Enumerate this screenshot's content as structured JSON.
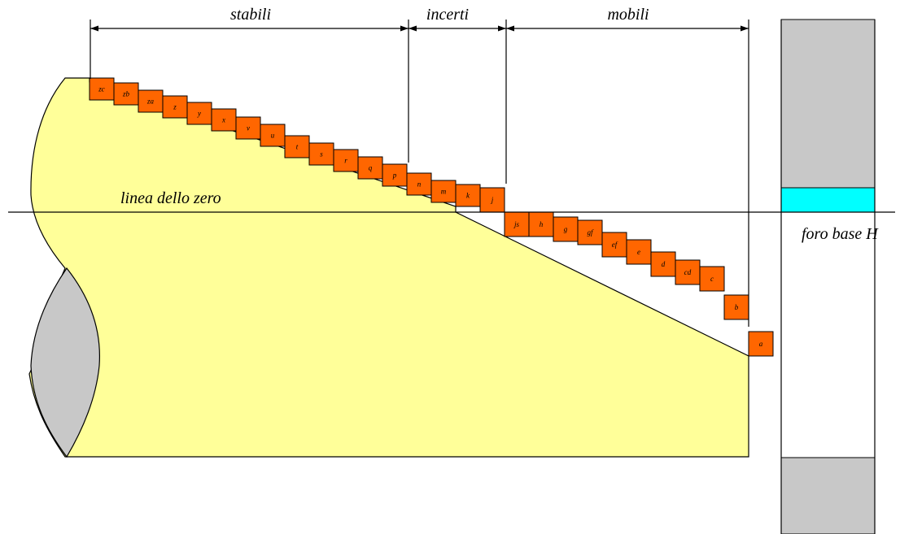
{
  "labels": {
    "stabili": "stabili",
    "incerti": "incerti",
    "mobili": "mobili",
    "zero_line": "linea dello zero",
    "hole_base": "foro base H"
  },
  "colors": {
    "shaft": "#ffff99",
    "shaft_section": "#c8c8c8",
    "deviation_box": "#ff6600",
    "hole_wall": "#c8c8c8",
    "hole_tolerance": "#00ffff",
    "line": "#000000"
  },
  "deviations": [
    {
      "code": "zc"
    },
    {
      "code": "zb"
    },
    {
      "code": "za"
    },
    {
      "code": "z"
    },
    {
      "code": "y"
    },
    {
      "code": "x"
    },
    {
      "code": "v"
    },
    {
      "code": "u"
    },
    {
      "code": "t"
    },
    {
      "code": "s"
    },
    {
      "code": "r"
    },
    {
      "code": "q"
    },
    {
      "code": "p"
    },
    {
      "code": "n"
    },
    {
      "code": "m"
    },
    {
      "code": "k"
    },
    {
      "code": "j"
    },
    {
      "code": "js"
    },
    {
      "code": "h"
    },
    {
      "code": "g"
    },
    {
      "code": "gf"
    },
    {
      "code": "ef"
    },
    {
      "code": "e"
    },
    {
      "code": "d"
    },
    {
      "code": "cd"
    },
    {
      "code": "c"
    },
    {
      "code": "b"
    },
    {
      "code": "a"
    }
  ]
}
